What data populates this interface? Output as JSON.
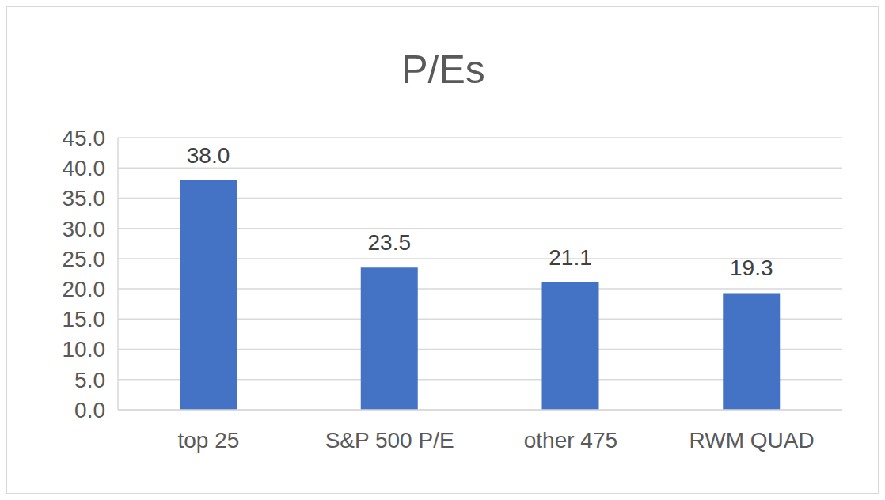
{
  "chart_data": {
    "type": "bar",
    "title": "P/Es",
    "categories": [
      "top 25",
      "S&P 500 P/E",
      "other 475",
      "RWM QUAD"
    ],
    "values": [
      38.0,
      23.5,
      21.1,
      19.3
    ],
    "value_labels": [
      "38.0",
      "23.5",
      "21.1",
      "19.3"
    ],
    "data_labels": true,
    "color": "#4472c4",
    "ylim": [
      0,
      45
    ],
    "yticks": [
      {
        "value": 0,
        "label": "0.0"
      },
      {
        "value": 5,
        "label": "5.0"
      },
      {
        "value": 10,
        "label": "10.0"
      },
      {
        "value": 15,
        "label": "15.0"
      },
      {
        "value": 20,
        "label": "20.0"
      },
      {
        "value": 25,
        "label": "25.0"
      },
      {
        "value": 30,
        "label": "30.0"
      },
      {
        "value": 35,
        "label": "35.0"
      },
      {
        "value": 40,
        "label": "40.0"
      },
      {
        "value": 45,
        "label": "45.0"
      }
    ],
    "grid": true
  }
}
